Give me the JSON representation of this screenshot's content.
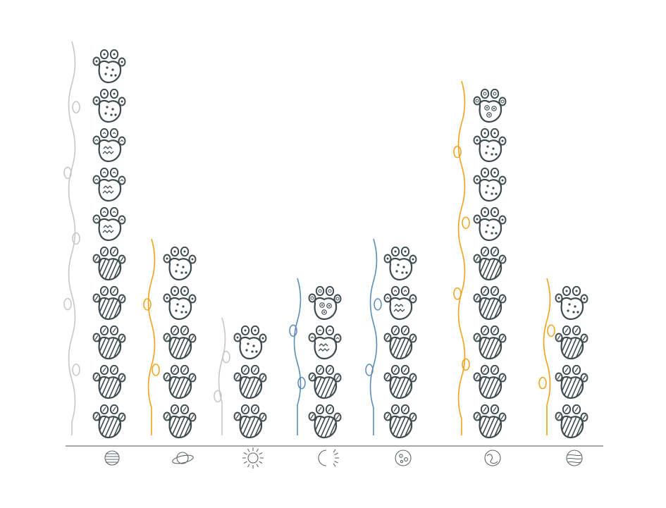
{
  "chart_data": {
    "type": "bar",
    "title": "",
    "xlabel": "",
    "ylabel": "",
    "categories": [
      "earth-icon",
      "saturn-icon",
      "sun-icon",
      "moon-sun-icon",
      "moon-icon",
      "marble-planet-icon",
      "jupiter-icon"
    ],
    "values": [
      10,
      5,
      3,
      4,
      5,
      9,
      4
    ],
    "ylim": [
      0,
      10
    ],
    "grid": false,
    "legend": "none",
    "stacks": [
      [
        "stripe",
        "stripe",
        "stripe",
        "stripe",
        "stripe",
        "zigzag",
        "zigzag",
        "zigzag",
        "dots",
        "dots"
      ],
      [
        "stripe",
        "stripe",
        "stripe",
        "dots",
        "dots"
      ],
      [
        "stripe",
        "stripe",
        "dots"
      ],
      [
        "stripe",
        "stripe",
        "zigzag",
        "swirl"
      ],
      [
        "stripe",
        "stripe",
        "stripe",
        "zigzag",
        "dots"
      ],
      [
        "stripe",
        "stripe",
        "stripe",
        "stripe",
        "stripe",
        "dots",
        "dots",
        "dots",
        "swirl"
      ],
      [
        "stripe",
        "stripe",
        "stripe",
        "dots"
      ]
    ],
    "vine_colors": [
      "#c8c6c2",
      "#f0a31a",
      "#c8c6c2",
      "#5b8db8",
      "#5b8db8",
      "#f0a31a",
      "#f0a31a"
    ],
    "ink_color": "#3d4a4e"
  }
}
